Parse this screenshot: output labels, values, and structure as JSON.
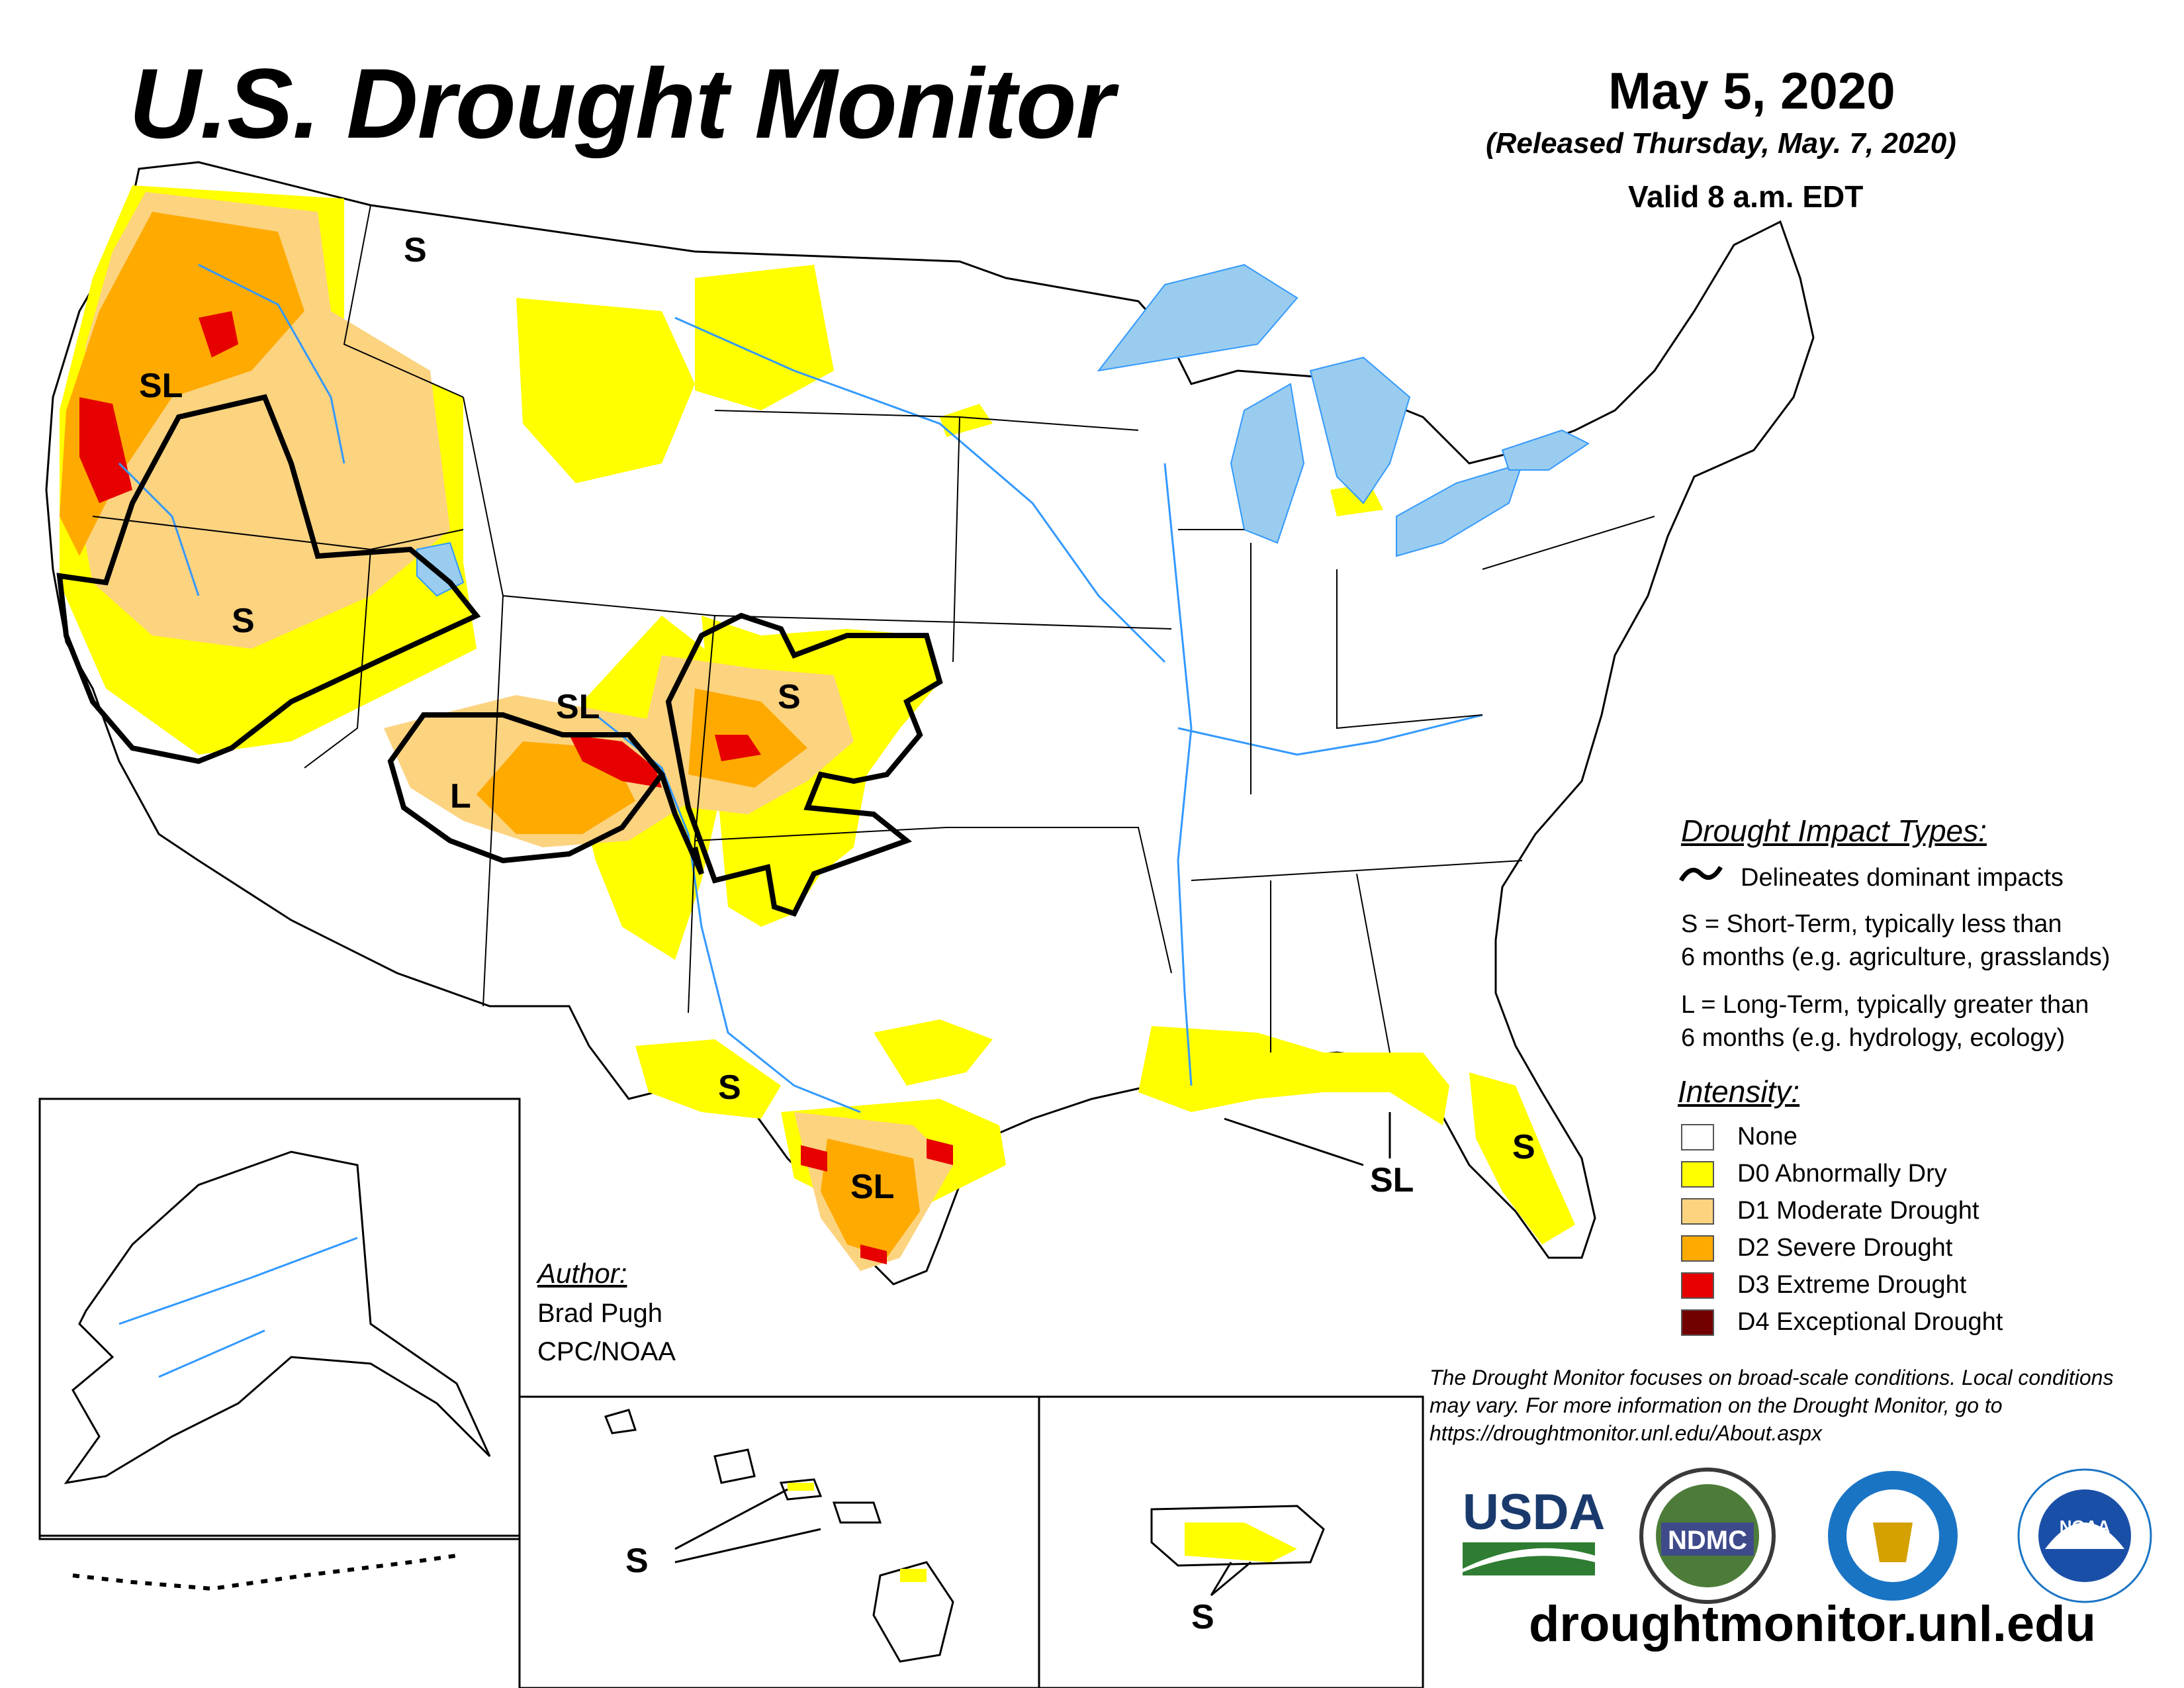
{
  "header": {
    "title": "U.S. Drought Monitor",
    "date": "May 5, 2020",
    "released": "(Released Thursday, May. 7, 2020)",
    "valid": "Valid 8 a.m. EDT"
  },
  "map_labels": {
    "sl_oregon": "SL",
    "s_idaho": "S",
    "s_nevada": "S",
    "sl_colorado": "SL",
    "s_kansas": "S",
    "l_utah": "L",
    "s_west_texas": "S",
    "sl_south_texas": "SL",
    "sl_gulf": "SL",
    "s_florida": "S",
    "s_hawaii": "S",
    "s_puerto_rico": "S"
  },
  "impact_types": {
    "heading": "Drought Impact Types:",
    "delineates": "Delineates dominant impacts",
    "short_term_line1": "S = Short-Term, typically less than",
    "short_term_line2": "6 months (e.g. agriculture, grasslands)",
    "long_term_line1": "L = Long-Term, typically greater than",
    "long_term_line2": "6 months (e.g. hydrology, ecology)"
  },
  "intensity": {
    "heading": "Intensity:",
    "levels": [
      {
        "label": "None",
        "color": "#ffffff"
      },
      {
        "label": "D0 Abnormally Dry",
        "color": "#ffff00"
      },
      {
        "label": "D1 Moderate Drought",
        "color": "#fcd37f"
      },
      {
        "label": "D2 Severe Drought",
        "color": "#ffaa00"
      },
      {
        "label": "D3 Extreme Drought",
        "color": "#e60000"
      },
      {
        "label": "D4 Exceptional Drought",
        "color": "#730000"
      }
    ]
  },
  "author": {
    "heading": "Author:",
    "name": "Brad Pugh",
    "org": "CPC/NOAA"
  },
  "disclaimer": "The Drought Monitor focuses on broad-scale conditions. Local conditions may vary. For more information on the Drought Monitor, go to https://droughtmonitor.unl.edu/About.aspx",
  "logos": {
    "usda": "USDA",
    "ndmc": "NDMC",
    "noaa": "NOAA"
  },
  "website": "droughtmonitor.unl.edu",
  "colors": {
    "water": "#99ccee",
    "river": "#3399ff",
    "border": "#000000"
  }
}
